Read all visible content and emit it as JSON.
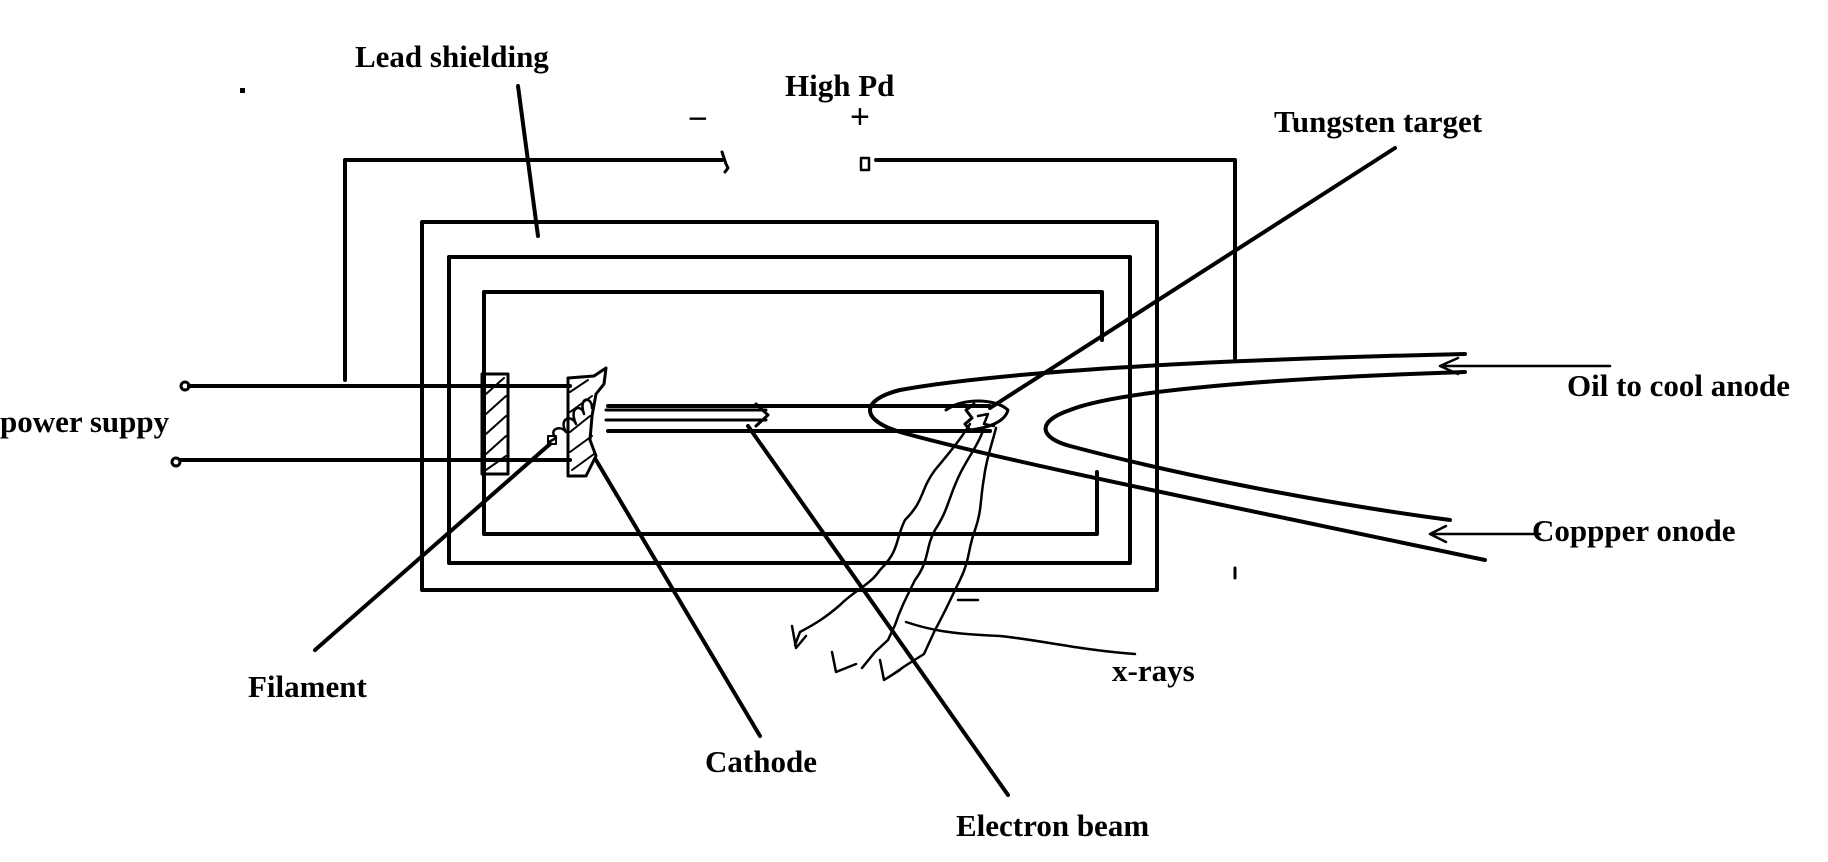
{
  "diagram": {
    "labels": {
      "lead_shielding": "Lead shielding",
      "high_pd": "High Pd",
      "minus": "−",
      "plus": "+",
      "tungsten_target": "Tungsten target",
      "oil_to_cool_anode": "Oil to cool anode",
      "power_supply": "power suppy",
      "copper_anode": "Coppper onode",
      "filament": "Filament",
      "x_rays": "x-rays",
      "cathode": "Cathode",
      "electron_beam": "Electron beam"
    },
    "colors": {
      "ink": "#000000",
      "background": "#ffffff"
    }
  }
}
